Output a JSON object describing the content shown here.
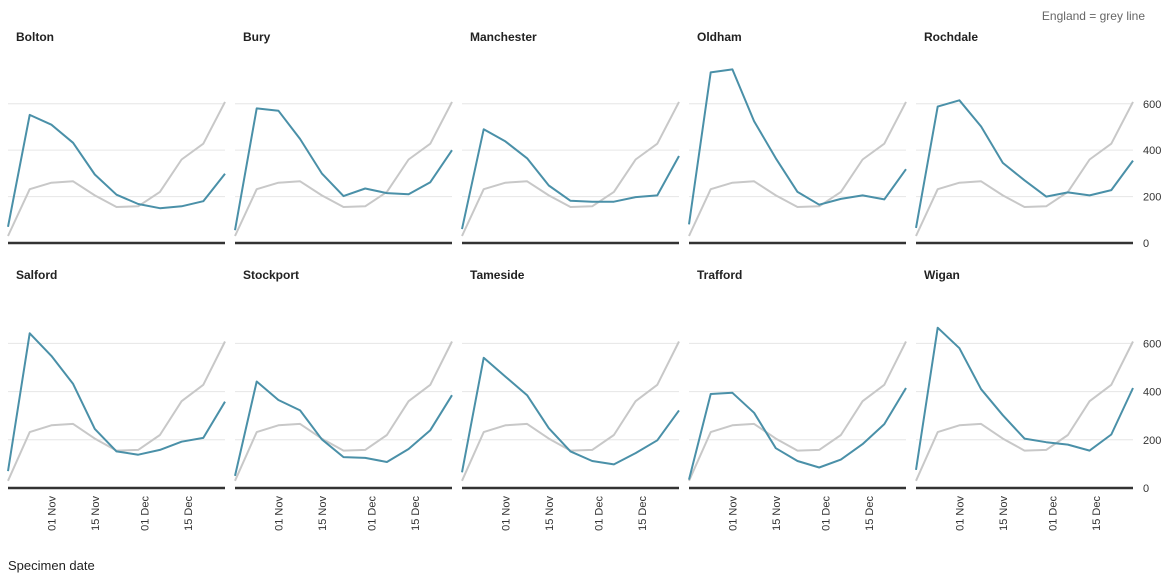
{
  "legend_note": "England = grey line",
  "x_axis_label": "Specimen date",
  "colors": {
    "area": "#4a90a8",
    "england": "#c8c8c8",
    "grid": "#e6e6e6",
    "baseline": "#333333"
  },
  "chart_data": {
    "type": "line",
    "x": [
      "2020-10-18",
      "2020-10-25",
      "2020-11-01",
      "2020-11-08",
      "2020-11-15",
      "2020-11-22",
      "2020-11-29",
      "2020-12-06",
      "2020-12-13",
      "2020-12-20",
      "2020-12-27"
    ],
    "x_ticks": [
      {
        "date": "2020-11-01",
        "label": "01 Nov"
      },
      {
        "date": "2020-11-15",
        "label": "15 Nov"
      },
      {
        "date": "2020-12-01",
        "label": "01 Dec"
      },
      {
        "date": "2020-12-15",
        "label": "15 Dec"
      }
    ],
    "y_ticks": [
      0,
      200,
      400,
      600
    ],
    "ylim": [
      0,
      780
    ],
    "grid": true,
    "england": [
      30,
      232,
      260,
      266,
      205,
      155,
      158,
      220,
      360,
      428,
      608
    ],
    "panels": [
      {
        "title": "Bolton",
        "values": [
          70,
          552,
          510,
          432,
          295,
          208,
          168,
          150,
          158,
          180,
          298
        ]
      },
      {
        "title": "Bury",
        "values": [
          55,
          580,
          570,
          448,
          300,
          202,
          235,
          215,
          210,
          262,
          400
        ]
      },
      {
        "title": "Manchester",
        "values": [
          60,
          490,
          438,
          365,
          248,
          182,
          178,
          178,
          198,
          205,
          375
        ]
      },
      {
        "title": "Oldham",
        "values": [
          80,
          735,
          748,
          525,
          365,
          220,
          165,
          190,
          205,
          188,
          318
        ]
      },
      {
        "title": "Rochdale",
        "values": [
          65,
          588,
          615,
          502,
          345,
          270,
          200,
          218,
          205,
          228,
          355
        ]
      },
      {
        "title": "Salford",
        "values": [
          70,
          642,
          548,
          432,
          245,
          152,
          138,
          158,
          192,
          208,
          358
        ]
      },
      {
        "title": "Stockport",
        "values": [
          50,
          442,
          365,
          322,
          202,
          128,
          125,
          108,
          162,
          240,
          385
        ]
      },
      {
        "title": "Tameside",
        "values": [
          65,
          540,
          462,
          385,
          248,
          152,
          112,
          98,
          145,
          198,
          322
        ]
      },
      {
        "title": "Trafford",
        "values": [
          35,
          390,
          395,
          312,
          165,
          112,
          85,
          118,
          182,
          265,
          415
        ]
      },
      {
        "title": "Wigan",
        "values": [
          75,
          665,
          580,
          410,
          302,
          205,
          190,
          180,
          155,
          222,
          415
        ]
      }
    ]
  }
}
